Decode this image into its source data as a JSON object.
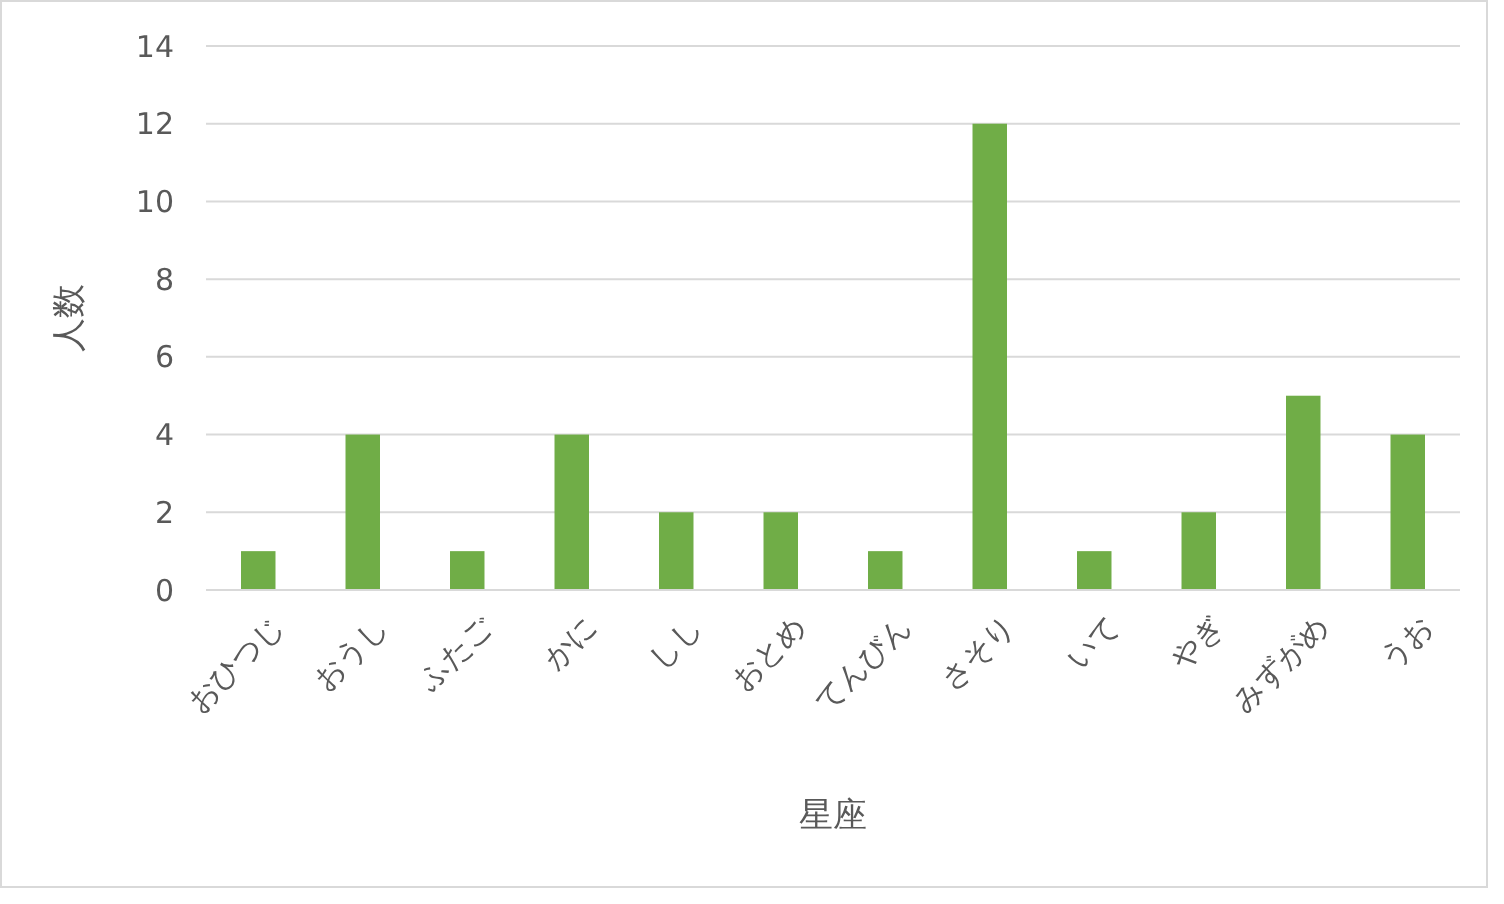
{
  "chart_data": {
    "type": "bar",
    "xlabel": "星座",
    "ylabel": "人数",
    "categories": [
      "おひつじ",
      "おうし",
      "ふたご",
      "かに",
      "しし",
      "おとめ",
      "てんびん",
      "さそり",
      "いて",
      "やぎ",
      "みずがめ",
      "うお"
    ],
    "values": [
      1,
      4,
      1,
      4,
      2,
      2,
      1,
      12,
      1,
      2,
      5,
      4
    ],
    "color": "#70ad47",
    "ylim": [
      0,
      14
    ],
    "yticks": [
      0,
      2,
      4,
      6,
      8,
      10,
      12,
      14
    ],
    "grid": "y"
  }
}
